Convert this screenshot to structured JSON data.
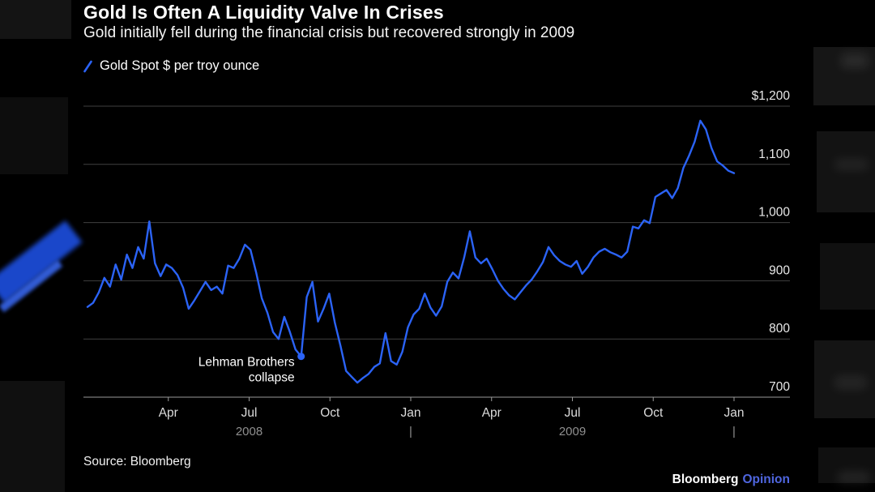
{
  "header": {
    "title": "Gold Is Often A Liquidity Valve In Crises",
    "subtitle": "Gold initially fell during the financial crisis but recovered strongly in 2009"
  },
  "legend": {
    "label": "Gold Spot $ per troy ounce"
  },
  "annotation": {
    "line1": "Lehman Brothers",
    "line2": "collapse"
  },
  "source": "Source: Bloomberg",
  "brand": {
    "name": "Bloomberg",
    "suffix": "Opinion"
  },
  "colors": {
    "line": "#2b63f6",
    "grid": "#404040",
    "axis_line": "#9a9a9a",
    "axis_text": "#e8e8e8",
    "month_text": "#dcdcdc",
    "year_text": "#8f8f8f",
    "annotation_text": "#ffffff",
    "opinion_blue": "#4f66e0"
  },
  "chart_data": {
    "type": "line",
    "title": "Gold Is Often A Liquidity Valve In Crises",
    "series_name": "Gold Spot $ per troy ounce",
    "ylabel": "Gold Spot $ per troy ounce",
    "ylim": [
      700,
      1200
    ],
    "grid": true,
    "legend_position": "top-left",
    "y_ticks": [
      {
        "label": "$1,200",
        "value": 1200
      },
      {
        "label": "1,100",
        "value": 1100
      },
      {
        "label": "1,000",
        "value": 1000
      },
      {
        "label": "900",
        "value": 900
      },
      {
        "label": "800",
        "value": 800
      },
      {
        "label": "700",
        "value": 700
      }
    ],
    "x_ticks": [
      {
        "label": "Apr",
        "month": 3
      },
      {
        "label": "Jul",
        "month": 6
      },
      {
        "label": "Oct",
        "month": 9
      },
      {
        "label": "Jan",
        "month": 12
      },
      {
        "label": "Apr",
        "month": 15
      },
      {
        "label": "Jul",
        "month": 18
      },
      {
        "label": "Oct",
        "month": 21
      },
      {
        "label": "Jan",
        "month": 24
      }
    ],
    "year_row": [
      {
        "label": "2008",
        "month": 6
      },
      {
        "label": "|",
        "month": 12
      },
      {
        "label": "2009",
        "month": 18
      },
      {
        "label": "|",
        "month": 24
      }
    ],
    "months_total": 24,
    "x_range_note": "weekly values, Jan 2008 through Jan 2010",
    "values": [
      855,
      862,
      880,
      905,
      890,
      928,
      902,
      945,
      922,
      958,
      938,
      1002,
      930,
      908,
      928,
      922,
      910,
      888,
      852,
      866,
      882,
      898,
      884,
      890,
      878,
      926,
      922,
      938,
      962,
      953,
      914,
      870,
      845,
      812,
      800,
      838,
      812,
      782,
      770,
      872,
      898,
      830,
      852,
      878,
      828,
      788,
      745,
      735,
      725,
      733,
      740,
      752,
      758,
      810,
      762,
      756,
      778,
      820,
      842,
      852,
      878,
      854,
      840,
      856,
      898,
      914,
      904,
      940,
      985,
      940,
      930,
      938,
      920,
      900,
      886,
      875,
      868,
      880,
      892,
      902,
      916,
      932,
      958,
      944,
      934,
      928,
      924,
      934,
      912,
      924,
      940,
      950,
      955,
      949,
      945,
      940,
      950,
      993,
      990,
      1004,
      999,
      1044,
      1050,
      1056,
      1042,
      1059,
      1094,
      1115,
      1139,
      1175,
      1160,
      1128,
      1105,
      1098,
      1089,
      1085
    ],
    "lehman_index": 38,
    "lehman_value": 770
  }
}
